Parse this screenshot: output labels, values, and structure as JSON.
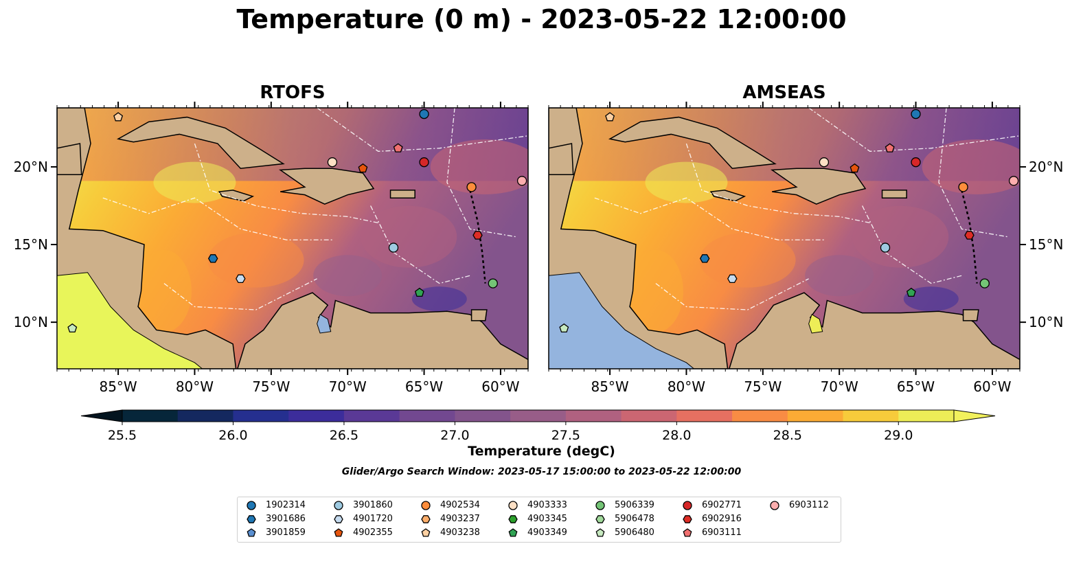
{
  "title": "Temperature (0 m) - 2023-05-22 12:00:00",
  "panels": [
    {
      "title": "RTOFS",
      "land_inset_color": "#e8f55a"
    },
    {
      "title": "AMSEAS",
      "land_inset_color": "#94b4de"
    }
  ],
  "axes": {
    "x_ticks": [
      "85°W",
      "80°W",
      "75°W",
      "70°W",
      "65°W",
      "60°W"
    ],
    "y_ticks": [
      "20°N",
      "15°N",
      "10°N"
    ]
  },
  "colorbar": {
    "label": "Temperature (degC)",
    "ticks": [
      "25.5",
      "26.0",
      "26.5",
      "27.0",
      "27.5",
      "28.0",
      "28.5",
      "29.0"
    ],
    "colors": [
      "#06263a",
      "#14285f",
      "#252f8f",
      "#3c2d9b",
      "#5a3996",
      "#724890",
      "#83548c",
      "#985d88",
      "#b06180",
      "#cb6672",
      "#e67061",
      "#f88c44",
      "#fbab35",
      "#f7cb3b",
      "#eded57"
    ]
  },
  "search_window": "Glider/Argo Search Window: 2023-05-17 15:00:00 to 2023-05-22 12:00:00",
  "legend": {
    "entries": [
      {
        "label": "1902314",
        "marker": "circle",
        "color": "#1f77b4"
      },
      {
        "label": "3901686",
        "marker": "hexagon",
        "color": "#1f77b4"
      },
      {
        "label": "3901859",
        "marker": "pentagon",
        "color": "#5a8fd0"
      },
      {
        "label": "3901860",
        "marker": "circle",
        "color": "#9ecae1"
      },
      {
        "label": "4901720",
        "marker": "hexagon",
        "color": "#c6dbef"
      },
      {
        "label": "4902355",
        "marker": "pentagon",
        "color": "#e6550d"
      },
      {
        "label": "4902534",
        "marker": "circle",
        "color": "#fd8d3c"
      },
      {
        "label": "4903237",
        "marker": "hexagon",
        "color": "#fdae6b"
      },
      {
        "label": "4903238",
        "marker": "pentagon",
        "color": "#fdd0a2"
      },
      {
        "label": "4903333",
        "marker": "circle",
        "color": "#fde0c5"
      },
      {
        "label": "4903345",
        "marker": "hexagon",
        "color": "#2ca02c"
      },
      {
        "label": "4903349",
        "marker": "pentagon",
        "color": "#31a354"
      },
      {
        "label": "5906339",
        "marker": "circle",
        "color": "#74c476"
      },
      {
        "label": "5906478",
        "marker": "hexagon",
        "color": "#a1d99b"
      },
      {
        "label": "5906480",
        "marker": "pentagon",
        "color": "#c7e9c0"
      },
      {
        "label": "6902771",
        "marker": "circle",
        "color": "#d62728"
      },
      {
        "label": "6902916",
        "marker": "hexagon",
        "color": "#de2d26"
      },
      {
        "label": "6903111",
        "marker": "pentagon",
        "color": "#f07070"
      },
      {
        "label": "6903112",
        "marker": "circle",
        "color": "#fcaeae"
      }
    ]
  },
  "markers": [
    {
      "id": "1902314",
      "lon": -65.0,
      "lat": 23.4
    },
    {
      "id": "3901686",
      "lon": -78.8,
      "lat": 14.1
    },
    {
      "id": "3901860",
      "lon": -67.0,
      "lat": 14.8
    },
    {
      "id": "4901720",
      "lon": -77.0,
      "lat": 12.8
    },
    {
      "id": "4902355",
      "lon": -69.0,
      "lat": 19.9
    },
    {
      "id": "4902534",
      "lon": -61.9,
      "lat": 18.7
    },
    {
      "id": "4903238",
      "lon": -85.0,
      "lat": 23.2
    },
    {
      "id": "4903333",
      "lon": -71.0,
      "lat": 20.3
    },
    {
      "id": "4903349",
      "lon": -65.3,
      "lat": 11.9
    },
    {
      "id": "5906339",
      "lon": -60.5,
      "lat": 12.5
    },
    {
      "id": "5906480",
      "lon": -88.0,
      "lat": 9.6
    },
    {
      "id": "6902771",
      "lon": -65.0,
      "lat": 20.3
    },
    {
      "id": "6902916",
      "lon": -61.5,
      "lat": 15.6
    },
    {
      "id": "6903111",
      "lon": -66.7,
      "lat": 21.2
    },
    {
      "id": "6903112",
      "lon": -58.6,
      "lat": 19.1
    }
  ]
}
